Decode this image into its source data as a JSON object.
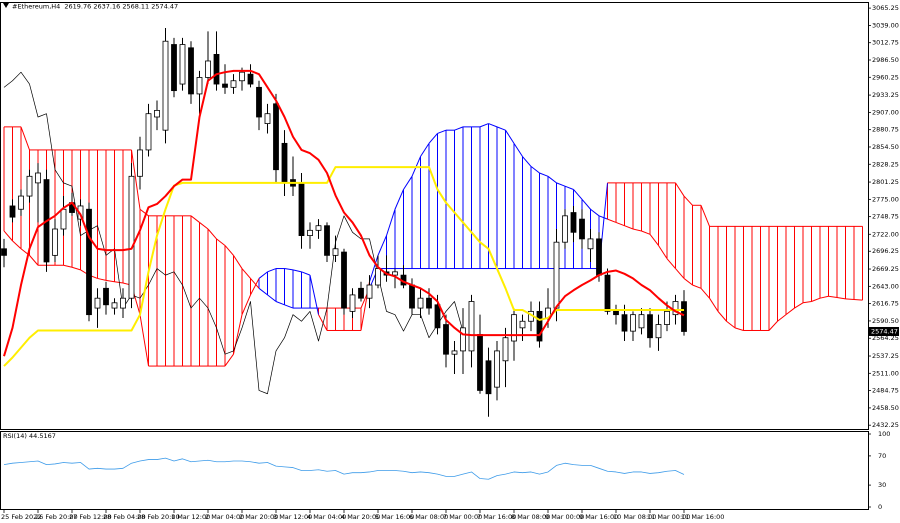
{
  "chart_data": [
    {
      "type": "candlestick",
      "title": "#Ethereum,H4",
      "categories": [
        "25 Feb 2022",
        null,
        null,
        null,
        "26 Feb 20:00",
        null,
        null,
        null,
        "27 Feb 12:00",
        null,
        null,
        null,
        "28 Feb 04:00",
        null,
        null,
        null,
        "28 Feb 20:00",
        null,
        null,
        null,
        "1 Mar 12:00",
        null,
        null,
        null,
        "2 Mar 04:00",
        null,
        null,
        null,
        "2 Mar 20:00",
        null,
        null,
        null,
        "3 Mar 12:00",
        null,
        null,
        null,
        "4 Mar 04:00",
        null,
        null,
        null,
        "4 Mar 20:00",
        null,
        null,
        null,
        "5 Mar 16:00",
        null,
        null,
        null,
        "6 Mar 08:00",
        null,
        null,
        null,
        "7 Mar 00:00",
        null,
        null,
        null,
        "7 Mar 16:00",
        null,
        null,
        null,
        "8 Mar 08:00",
        null,
        null,
        null,
        "9 Mar 00:00",
        null,
        null,
        null,
        "9 Mar 16:00",
        null,
        null,
        null,
        "10 Mar 08:00",
        null,
        null,
        null,
        "11 Mar 00:00",
        null,
        null,
        null,
        "11 Mar 16:00",
        null,
        null,
        null,
        null,
        null,
        null,
        null,
        null,
        null,
        null,
        null,
        null,
        null,
        null,
        null,
        null,
        null,
        null,
        null,
        null,
        null
      ],
      "open": [
        2700,
        2765,
        2760,
        2780,
        2800,
        2805,
        2690,
        2730,
        2770,
        2745,
        2760,
        2610,
        2640,
        2610,
        2610,
        2625,
        2810,
        2850,
        2900,
        2880,
        3010,
        2950,
        3005,
        2935,
        2960,
        2995,
        2950,
        2945,
        2955,
        2965,
        2945,
        2890,
        2920,
        2860,
        2805,
        2800,
        2720,
        2728,
        2735,
        2690,
        2695,
        2605,
        2640,
        2625,
        2645,
        2665,
        2660,
        2660,
        2645,
        2610,
        2625,
        2615,
        2585,
        2540,
        2545,
        2545,
        2570,
        2530,
        2490,
        2530,
        2560,
        2580,
        2590,
        2605,
        2595,
        2610,
        2710,
        2755,
        2745,
        2700,
        2715,
        2660,
        2605,
        2600,
        2575,
        2580,
        2600,
        2565,
        2585,
        2600,
        2619.76,
        null,
        null,
        null,
        null,
        null,
        null,
        null,
        null,
        null,
        null,
        null,
        null,
        null,
        null,
        null,
        null,
        null,
        null,
        null,
        null,
        null
      ],
      "high": [
        2715,
        2775,
        2790,
        2820,
        2830,
        2820,
        2745,
        2780,
        2785,
        2775,
        2770,
        2640,
        2650,
        2625,
        2640,
        2830,
        2870,
        2920,
        2925,
        3035,
        3020,
        3020,
        3015,
        2970,
        3030,
        3030,
        2980,
        2965,
        2975,
        2980,
        2955,
        2920,
        2935,
        2880,
        2840,
        2815,
        2740,
        2745,
        2740,
        2720,
        2700,
        2640,
        2650,
        2660,
        2690,
        2690,
        2670,
        2675,
        2655,
        2640,
        2640,
        2630,
        2600,
        2560,
        2610,
        2630,
        2600,
        2550,
        2560,
        2580,
        2610,
        2600,
        2620,
        2620,
        2640,
        2730,
        2760,
        2765,
        2760,
        2730,
        2725,
        2670,
        2615,
        2615,
        2605,
        2610,
        2610,
        2600,
        2620,
        2630,
        2637.16,
        null,
        null,
        null,
        null,
        null,
        null,
        null,
        null,
        null,
        null,
        null,
        null,
        null,
        null,
        null,
        null,
        null,
        null,
        null,
        null,
        null
      ],
      "low": [
        2672,
        2740,
        2750,
        2770,
        2740,
        2665,
        2680,
        2720,
        2750,
        2735,
        2590,
        2580,
        2600,
        2600,
        2595,
        2610,
        2790,
        2840,
        2880,
        2860,
        2930,
        2940,
        2920,
        2905,
        2950,
        2940,
        2935,
        2935,
        2940,
        2945,
        2880,
        2875,
        2800,
        2780,
        2780,
        2700,
        2700,
        2715,
        2680,
        2680,
        2600,
        2595,
        2620,
        2610,
        2640,
        2650,
        2640,
        2640,
        2600,
        2595,
        2600,
        2570,
        2520,
        2510,
        2510,
        2520,
        2480,
        2445,
        2470,
        2490,
        2530,
        2560,
        2575,
        2550,
        2580,
        2590,
        2700,
        2710,
        2700,
        2680,
        2650,
        2600,
        2585,
        2560,
        2560,
        2570,
        2550,
        2545,
        2575,
        2585,
        2568.11,
        null,
        null,
        null,
        null,
        null,
        null,
        null,
        null,
        null,
        null,
        null,
        null,
        null,
        null,
        null,
        null,
        null,
        null,
        null,
        null,
        null
      ],
      "close": [
        2690,
        2748,
        2780,
        2810,
        2815,
        2680,
        2730,
        2760,
        2755,
        2765,
        2600,
        2625,
        2615,
        2618,
        2625,
        2810,
        2850,
        2905,
        2910,
        3015,
        2940,
        3010,
        2935,
        2960,
        2985,
        2950,
        2945,
        2955,
        2968,
        2950,
        2900,
        2905,
        2820,
        2800,
        2795,
        2720,
        2728,
        2735,
        2690,
        2700,
        2610,
        2630,
        2625,
        2645,
        2670,
        2660,
        2665,
        2645,
        2610,
        2625,
        2610,
        2580,
        2540,
        2545,
        2580,
        2620,
        2485,
        2480,
        2545,
        2565,
        2600,
        2590,
        2605,
        2560,
        2610,
        2710,
        2750,
        2725,
        2715,
        2715,
        2660,
        2605,
        2600,
        2575,
        2600,
        2600,
        2565,
        2585,
        2605,
        2620,
        2574.47,
        null,
        null,
        null,
        null,
        null,
        null,
        null,
        null,
        null,
        null,
        null,
        null,
        null,
        null,
        null,
        null,
        null,
        null,
        null,
        null,
        null
      ],
      "bull_color": "#ffffff",
      "bear_color": "#000000",
      "conversion_line": {
        "color": "#ff0000",
        "values": [
          2537,
          2580,
          2645,
          2700,
          2733,
          2742,
          2750,
          2762,
          2770,
          2752,
          2718,
          2700,
          2698,
          2698,
          2698,
          2700,
          2728,
          2763,
          2768,
          2780,
          2795,
          2805,
          2805,
          2900,
          2955,
          2965,
          2968,
          2970,
          2970,
          2970,
          2965,
          2945,
          2925,
          2900,
          2870,
          2850,
          2845,
          2835,
          2815,
          2781,
          2755,
          2740,
          2720,
          2690,
          2672,
          2662,
          2658,
          2650,
          2645,
          2640,
          2632,
          2620,
          2592,
          2580,
          2570,
          2569,
          2569,
          2569,
          2569,
          2569,
          2569,
          2569,
          2569,
          2569,
          2590,
          2612,
          2628,
          2637,
          2645,
          2652,
          2660,
          2665,
          2667,
          2662,
          2655,
          2645,
          2637,
          2625,
          2614,
          2605,
          2599,
          null,
          null,
          null,
          null,
          null,
          null,
          null,
          null,
          null,
          null,
          null,
          null,
          null,
          null,
          null,
          null,
          null,
          null,
          null,
          null,
          null
        ]
      },
      "base_line": {
        "color": "#ffee00",
        "values": [
          2522,
          2535,
          2550,
          2565,
          2576,
          2576,
          2576,
          2576,
          2576,
          2576,
          2576,
          2576,
          2576,
          2576,
          2576,
          2576,
          2600,
          2665,
          2720,
          2760,
          2796,
          2800,
          2800,
          2800,
          2800,
          2800,
          2800,
          2800,
          2800,
          2800,
          2800,
          2800,
          2800,
          2800,
          2800,
          2800,
          2800,
          2800,
          2800,
          2824,
          2824,
          2824,
          2824,
          2824,
          2824,
          2824,
          2824,
          2824,
          2824,
          2824,
          2824,
          2790,
          2770,
          2755,
          2740,
          2725,
          2710,
          2700,
          2670,
          2640,
          2607,
          2607,
          2600,
          2592,
          2595,
          2607,
          2607,
          2607,
          2607,
          2607,
          2607,
          2607,
          2607,
          2607,
          2607,
          2607,
          2607,
          2607,
          2607,
          2607,
          2607,
          null,
          null,
          null,
          null,
          null,
          null,
          null,
          null,
          null,
          null,
          null,
          null,
          null,
          null,
          null,
          null,
          null,
          null,
          null,
          null,
          null
        ]
      },
      "lagging_span": {
        "color": "#000000",
        "values": [
          2945,
          2955,
          2968,
          2950,
          2900,
          2905,
          2820,
          2800,
          2795,
          2720,
          2728,
          2735,
          2690,
          2700,
          2610,
          2630,
          2625,
          2645,
          2670,
          2660,
          2665,
          2645,
          2610,
          2625,
          2610,
          2580,
          2540,
          2545,
          2580,
          2620,
          2485,
          2480,
          2545,
          2565,
          2600,
          2590,
          2605,
          2560,
          2610,
          2710,
          2750,
          2725,
          2715,
          2715,
          2660,
          2605,
          2600,
          2575,
          2600,
          2600,
          2565,
          2585,
          2605,
          2620,
          2574.47,
          null,
          null,
          null,
          null,
          null,
          null,
          null,
          null,
          null,
          null,
          null,
          null,
          null,
          null,
          null,
          null,
          null,
          null,
          null,
          null,
          null,
          null,
          null,
          null,
          null,
          null,
          null,
          null,
          null,
          null,
          null,
          null,
          null,
          null,
          null,
          null,
          null,
          null,
          null,
          null,
          null,
          null
        ]
      },
      "leading_span_a": {
        "values": [
          2727,
          2712,
          2700,
          2690,
          2675,
          2675,
          2675,
          2675,
          2672,
          2668,
          2660,
          2655,
          2652,
          2650,
          2648,
          2645,
          2600,
          2522,
          2522,
          2522,
          2522,
          2522,
          2522,
          2522,
          2522,
          2522,
          2522,
          2540,
          2600,
          2630,
          2655,
          2665,
          2670,
          2670,
          2668,
          2665,
          2660,
          2600,
          2576,
          2576,
          2576,
          2576,
          2576,
          2650,
          2690,
          2720,
          2760,
          2790,
          2810,
          2840,
          2860,
          2875,
          2880,
          2880,
          2885,
          2885,
          2885,
          2890,
          2885,
          2880,
          2860,
          2840,
          2825,
          2815,
          2810,
          2800,
          2795,
          2790,
          2775,
          2760,
          2750,
          2745,
          2740,
          2735,
          2730,
          2727,
          2722,
          2705,
          2685,
          2670,
          2655,
          2645,
          2640,
          2625,
          2605,
          2590,
          2580,
          2576,
          2576,
          2576,
          2576,
          2590,
          2600,
          2610,
          2618,
          2620,
          2625,
          2628,
          2626,
          2624,
          2623,
          2622
        ]
      },
      "leading_span_b": {
        "values": [
          2885,
          2885,
          2885,
          2850,
          2850,
          2850,
          2850,
          2850,
          2850,
          2850,
          2850,
          2850,
          2850,
          2850,
          2850,
          2850,
          2760,
          2750,
          2750,
          2750,
          2750,
          2750,
          2750,
          2740,
          2730,
          2715,
          2705,
          2690,
          2670,
          2655,
          2640,
          2630,
          2620,
          2615,
          2610,
          2610,
          2610,
          2610,
          2610,
          2610,
          2610,
          2610,
          2610,
          2640,
          2670,
          2670,
          2670,
          2670,
          2670,
          2670,
          2670,
          2670,
          2670,
          2670,
          2670,
          2670,
          2670,
          2670,
          2670,
          2670,
          2670,
          2670,
          2670,
          2670,
          2670,
          2670,
          2670,
          2670,
          2670,
          2670,
          2670,
          2800,
          2800,
          2800,
          2800,
          2800,
          2800,
          2800,
          2800,
          2800,
          2780,
          2766,
          2766,
          2734,
          2734,
          2734,
          2734,
          2734,
          2734,
          2734,
          2734,
          2734,
          2734,
          2734,
          2734,
          2734,
          2734,
          2734,
          2734,
          2734,
          2734,
          2734
        ]
      },
      "cloud_bullish_color": "#0000ff",
      "cloud_bearish_color": "#ff0000",
      "ylim": [
        2428,
        3073
      ],
      "yticks": [
        3065.25,
        {
          "value": 3039,
          "label": "3039.00"
        },
        3012.75,
        {
          "value": 2986.5,
          "label": "2986.50"
        },
        2960.25,
        2933.25,
        {
          "value": 2907,
          "label": "2907.00"
        },
        2880.75,
        {
          "value": 2854.5,
          "label": "2854.50"
        },
        2828.25,
        2801.25,
        {
          "value": 2775,
          "label": "2775.00"
        },
        2748.75,
        {
          "value": 2722,
          "label": "2722.00"
        },
        2696.25,
        2669.25,
        {
          "value": 2643,
          "label": "2643.00"
        },
        2616.75,
        {
          "value": 2590.5,
          "label": "2590.50"
        },
        2564.25,
        2537.25,
        {
          "value": 2511,
          "label": "2511.00"
        },
        2484.75,
        {
          "value": 2458.5,
          "label": "2458.50"
        },
        2432.25
      ]
    },
    {
      "type": "line",
      "title": "RSI(14)",
      "color": "#3d9be9",
      "values": [
        58,
        60,
        61,
        62,
        63,
        58,
        59,
        61,
        60,
        61,
        52,
        53,
        52,
        52,
        53,
        60,
        63,
        65,
        65,
        67,
        63,
        66,
        62,
        63,
        64,
        62,
        62,
        63,
        63,
        62,
        60,
        61,
        56,
        55,
        54,
        50,
        50,
        51,
        49,
        50,
        45,
        47,
        47,
        48,
        50,
        50,
        50,
        49,
        47,
        48,
        47,
        45,
        42,
        42,
        45,
        48,
        39,
        38,
        43,
        45,
        48,
        47,
        48,
        45,
        48,
        57,
        60,
        58,
        57,
        57,
        53,
        49,
        48,
        46,
        48,
        48,
        46,
        47,
        49,
        50,
        44.5167
      ],
      "ylim": [
        0,
        100
      ],
      "yticks": [
        100,
        70,
        30,
        0
      ]
    }
  ]
}
